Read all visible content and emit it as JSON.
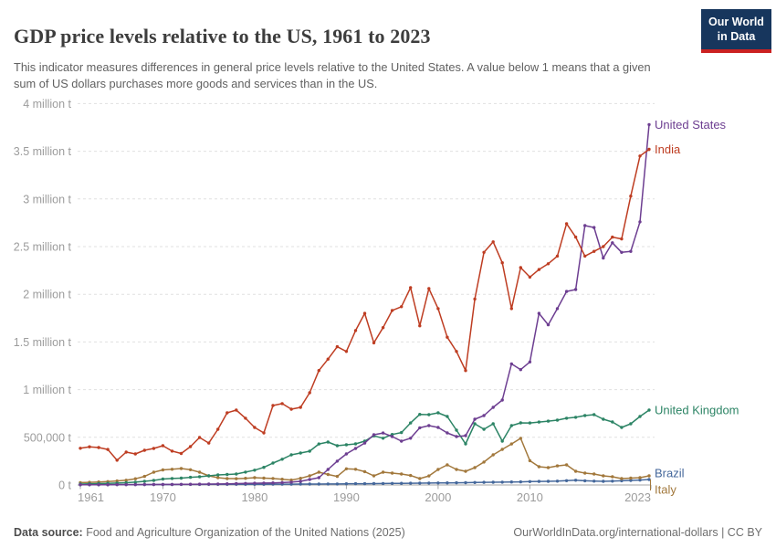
{
  "header": {
    "title": "GDP price levels relative to the US, 1961 to 2023",
    "subtitle": "This indicator measures differences in general price levels relative to the United States. A value below 1 means that a given sum of US dollars purchases more goods and services than in the US.",
    "logo": {
      "line1": "Our World",
      "line2": "in Data"
    },
    "logo_bg_color": "#17365d",
    "logo_bar_color": "#cb2121"
  },
  "footer": {
    "source_label": "Data source:",
    "source_text": "Food and Agriculture Organization of the United Nations (2025)",
    "attribution": "OurWorldInData.org/international-dollars | CC BY"
  },
  "chart_data": {
    "type": "line",
    "title": "GDP price levels relative to the US, 1961 to 2023",
    "unit": "t",
    "grid": "horizontal dashed",
    "legend_position": "right edge end-of-line labels",
    "xlim": [
      1961,
      2023
    ],
    "ylim": [
      0,
      4000000
    ],
    "x_ticks": [
      1961,
      1970,
      1980,
      1990,
      2000,
      2010,
      2023
    ],
    "y_ticks": [
      {
        "v": 0,
        "label": "0 t"
      },
      {
        "v": 500000,
        "label": "500,000 t"
      },
      {
        "v": 1000000,
        "label": "1 million t"
      },
      {
        "v": 1500000,
        "label": "1.5 million t"
      },
      {
        "v": 2000000,
        "label": "2 million t"
      },
      {
        "v": 2500000,
        "label": "2.5 million t"
      },
      {
        "v": 3000000,
        "label": "3 million t"
      },
      {
        "v": 3500000,
        "label": "3.5 million t"
      },
      {
        "v": 4000000,
        "label": "4 million t"
      }
    ],
    "years": [
      1961,
      1962,
      1963,
      1964,
      1965,
      1966,
      1967,
      1968,
      1969,
      1970,
      1971,
      1972,
      1973,
      1974,
      1975,
      1976,
      1977,
      1978,
      1979,
      1980,
      1981,
      1982,
      1983,
      1984,
      1985,
      1986,
      1987,
      1988,
      1989,
      1990,
      1991,
      1992,
      1993,
      1994,
      1995,
      1996,
      1997,
      1998,
      1999,
      2000,
      2001,
      2002,
      2003,
      2004,
      2005,
      2006,
      2007,
      2008,
      2009,
      2010,
      2011,
      2012,
      2013,
      2014,
      2015,
      2016,
      2017,
      2018,
      2019,
      2020,
      2021,
      2022,
      2023
    ],
    "series": [
      {
        "name": "United States",
        "color": "#6D3E91",
        "values": [
          3000,
          3000,
          3000,
          3000,
          4000,
          4000,
          4000,
          5000,
          5000,
          6000,
          6000,
          7000,
          8000,
          9000,
          10000,
          11000,
          12000,
          14000,
          16000,
          18000,
          20000,
          22000,
          25000,
          30000,
          38000,
          57000,
          77000,
          163000,
          250000,
          326000,
          383000,
          440000,
          527000,
          545000,
          508000,
          460000,
          490000,
          600000,
          623000,
          603000,
          546000,
          508000,
          517000,
          690000,
          728000,
          814000,
          891000,
          1270000,
          1210000,
          1290000,
          1800000,
          1680000,
          1850000,
          2030000,
          2050000,
          2720000,
          2700000,
          2380000,
          2540000,
          2440000,
          2450000,
          2760000,
          3780000
        ]
      },
      {
        "name": "India",
        "color": "#BE3D22",
        "values": [
          385000,
          400000,
          393000,
          373000,
          260000,
          345000,
          326000,
          364000,
          383000,
          412000,
          355000,
          330000,
          402000,
          498000,
          440000,
          584000,
          757000,
          785000,
          700000,
          603000,
          546000,
          833000,
          853000,
          795000,
          814000,
          967000,
          1200000,
          1320000,
          1450000,
          1400000,
          1620000,
          1800000,
          1490000,
          1650000,
          1830000,
          1870000,
          2070000,
          1670000,
          2060000,
          1850000,
          1550000,
          1400000,
          1200000,
          1950000,
          2440000,
          2550000,
          2330000,
          1850000,
          2280000,
          2180000,
          2260000,
          2320000,
          2400000,
          2740000,
          2600000,
          2400000,
          2450000,
          2500000,
          2600000,
          2580000,
          3030000,
          3450000,
          3520000
        ]
      },
      {
        "name": "United Kingdom",
        "color": "#2C8465",
        "values": [
          10000,
          12000,
          14000,
          17000,
          20000,
          24000,
          30000,
          38000,
          48000,
          62000,
          68000,
          72000,
          80000,
          86000,
          96000,
          105000,
          110000,
          115000,
          135000,
          155000,
          185000,
          230000,
          270000,
          316000,
          335000,
          354000,
          430000,
          450000,
          412000,
          421000,
          431000,
          460000,
          515000,
          490000,
          530000,
          550000,
          650000,
          740000,
          738000,
          757000,
          718000,
          575000,
          431000,
          642000,
          584000,
          642000,
          460000,
          623000,
          651000,
          650000,
          660000,
          670000,
          680000,
          700000,
          710000,
          728000,
          738000,
          690000,
          661000,
          603000,
          642000,
          718000,
          785000
        ]
      },
      {
        "name": "Brazil",
        "color": "#44679B",
        "values": [
          3000,
          3000,
          3000,
          3000,
          4000,
          4000,
          4000,
          4000,
          5000,
          5000,
          5000,
          6000,
          6000,
          6000,
          7000,
          7000,
          7000,
          8000,
          8000,
          8000,
          8000,
          9000,
          9000,
          9000,
          10000,
          10000,
          10000,
          11000,
          11000,
          12000,
          13000,
          13000,
          14000,
          15000,
          16000,
          17000,
          18000,
          19000,
          20000,
          21000,
          22000,
          23000,
          24000,
          26000,
          28000,
          29000,
          30000,
          32000,
          33000,
          35000,
          37000,
          38000,
          40000,
          45000,
          50000,
          44000,
          40000,
          38000,
          40000,
          44000,
          48000,
          52000,
          57000
        ]
      },
      {
        "name": "Italy",
        "color": "#A2783C",
        "values": [
          25000,
          28000,
          32000,
          35000,
          42000,
          50000,
          65000,
          90000,
          134000,
          158000,
          165000,
          172000,
          160000,
          134000,
          96000,
          77000,
          67000,
          66000,
          70000,
          77000,
          72000,
          68000,
          60000,
          52000,
          70000,
          96000,
          134000,
          110000,
          90000,
          170000,
          165000,
          140000,
          96000,
          134000,
          125000,
          115000,
          100000,
          67000,
          95000,
          163000,
          211000,
          163000,
          144000,
          182000,
          240000,
          316000,
          374000,
          430000,
          489000,
          255000,
          192000,
          182000,
          200000,
          211000,
          144000,
          125000,
          115000,
          96000,
          86000,
          67000,
          72000,
          77000,
          96000
        ]
      }
    ]
  }
}
